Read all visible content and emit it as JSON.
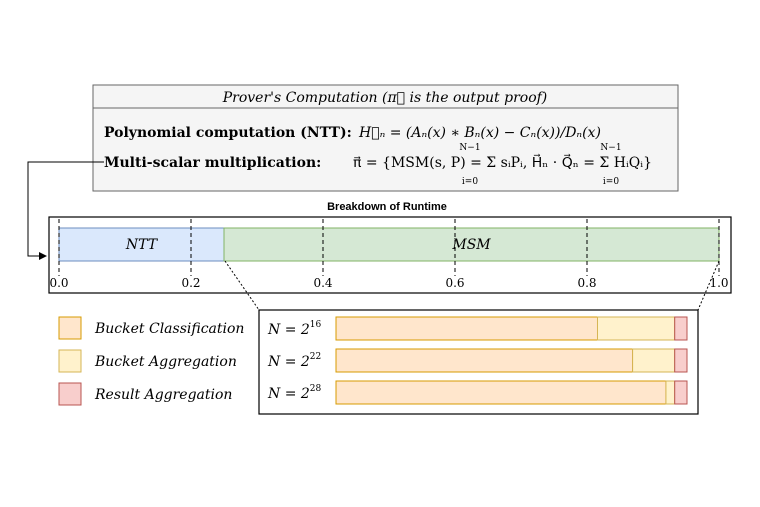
{
  "prover_box": {
    "header": "Prover's Computation (π⃗ is the output proof)",
    "line1_label": "Polynomial computation (NTT):",
    "line1_formula": "H⃗ₙ = (Aₙ(x) ∗ Bₙ(x) − Cₙ(x))/Dₙ(x)",
    "line2_label": "Multi-scalar multiplication:",
    "line2_formula": "π⃗ = {MSM(s, P) = Σ sᵢPᵢ,  H⃗ₙ · Q⃗ₙ = Σ HᵢQᵢ}",
    "sum_upper": "N−1",
    "sum_lower": "i=0"
  },
  "runtime": {
    "title": "Breakdown  of Runtime",
    "segments": [
      {
        "label": "NTT",
        "start": 0.0,
        "end": 0.25,
        "color": "#dae8fc",
        "stroke": "#6c8ebf"
      },
      {
        "label": "MSM",
        "start": 0.25,
        "end": 1.0,
        "color": "#d5e8d4",
        "stroke": "#82b366"
      }
    ],
    "ticks": [
      "0.0",
      "0.2",
      "0.4",
      "0.6",
      "0.8",
      "1.0"
    ],
    "tick_values": [
      0.0,
      0.2,
      0.4,
      0.6,
      0.8,
      1.0
    ]
  },
  "legend": [
    {
      "label": "Bucket Classification",
      "color": "#ffe6cc",
      "stroke": "#d79b00"
    },
    {
      "label": "Bucket Aggregation",
      "color": "#fff2cc",
      "stroke": "#d6b656"
    },
    {
      "label": "Result Aggregation",
      "color": "#f8cecc",
      "stroke": "#b85450"
    }
  ],
  "msm_breakdown": [
    {
      "label": "N = 2",
      "exponent": "16",
      "classification": 0.745,
      "aggregation": 0.22,
      "result": 0.035
    },
    {
      "label": "N = 2",
      "exponent": "22",
      "classification": 0.845,
      "aggregation": 0.12,
      "result": 0.035
    },
    {
      "label": "N = 2",
      "exponent": "28",
      "classification": 0.94,
      "aggregation": 0.025,
      "result": 0.035
    }
  ]
}
